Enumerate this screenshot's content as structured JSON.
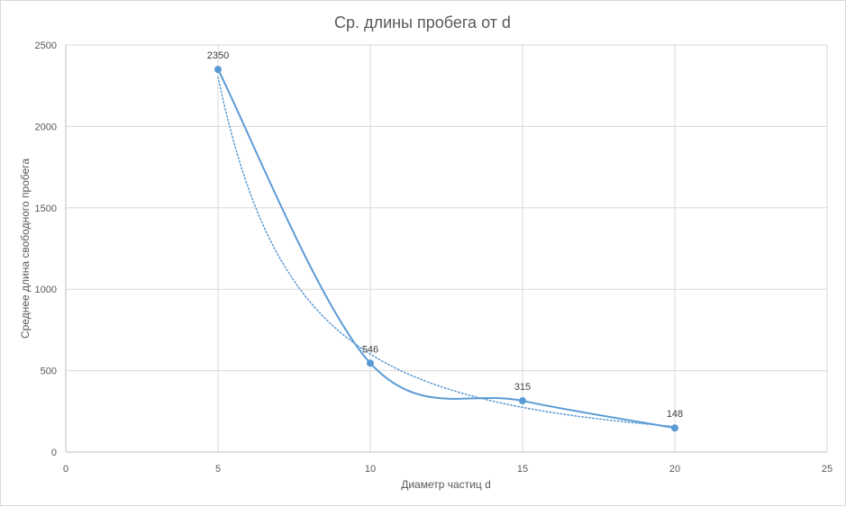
{
  "chart_data": {
    "type": "scatter",
    "title": "Ср. длины пробега от d",
    "xlabel": "Диаметр частиц d",
    "ylabel": "Среднее длина свободного пробега",
    "xlim": [
      0,
      25
    ],
    "ylim": [
      0,
      2500
    ],
    "x_ticks": [
      0,
      5,
      10,
      15,
      20,
      25
    ],
    "y_ticks": [
      0,
      500,
      1000,
      1500,
      2000,
      2500
    ],
    "grid": true,
    "legend": "none",
    "series_color": "#5b9bd5",
    "series": [
      {
        "smoothed": true,
        "trendline": "power",
        "x": [
          5,
          10,
          15,
          20
        ],
        "y": [
          2350,
          546,
          315,
          148
        ],
        "data_labels": [
          "2350",
          "546",
          "315",
          "148"
        ]
      }
    ]
  }
}
